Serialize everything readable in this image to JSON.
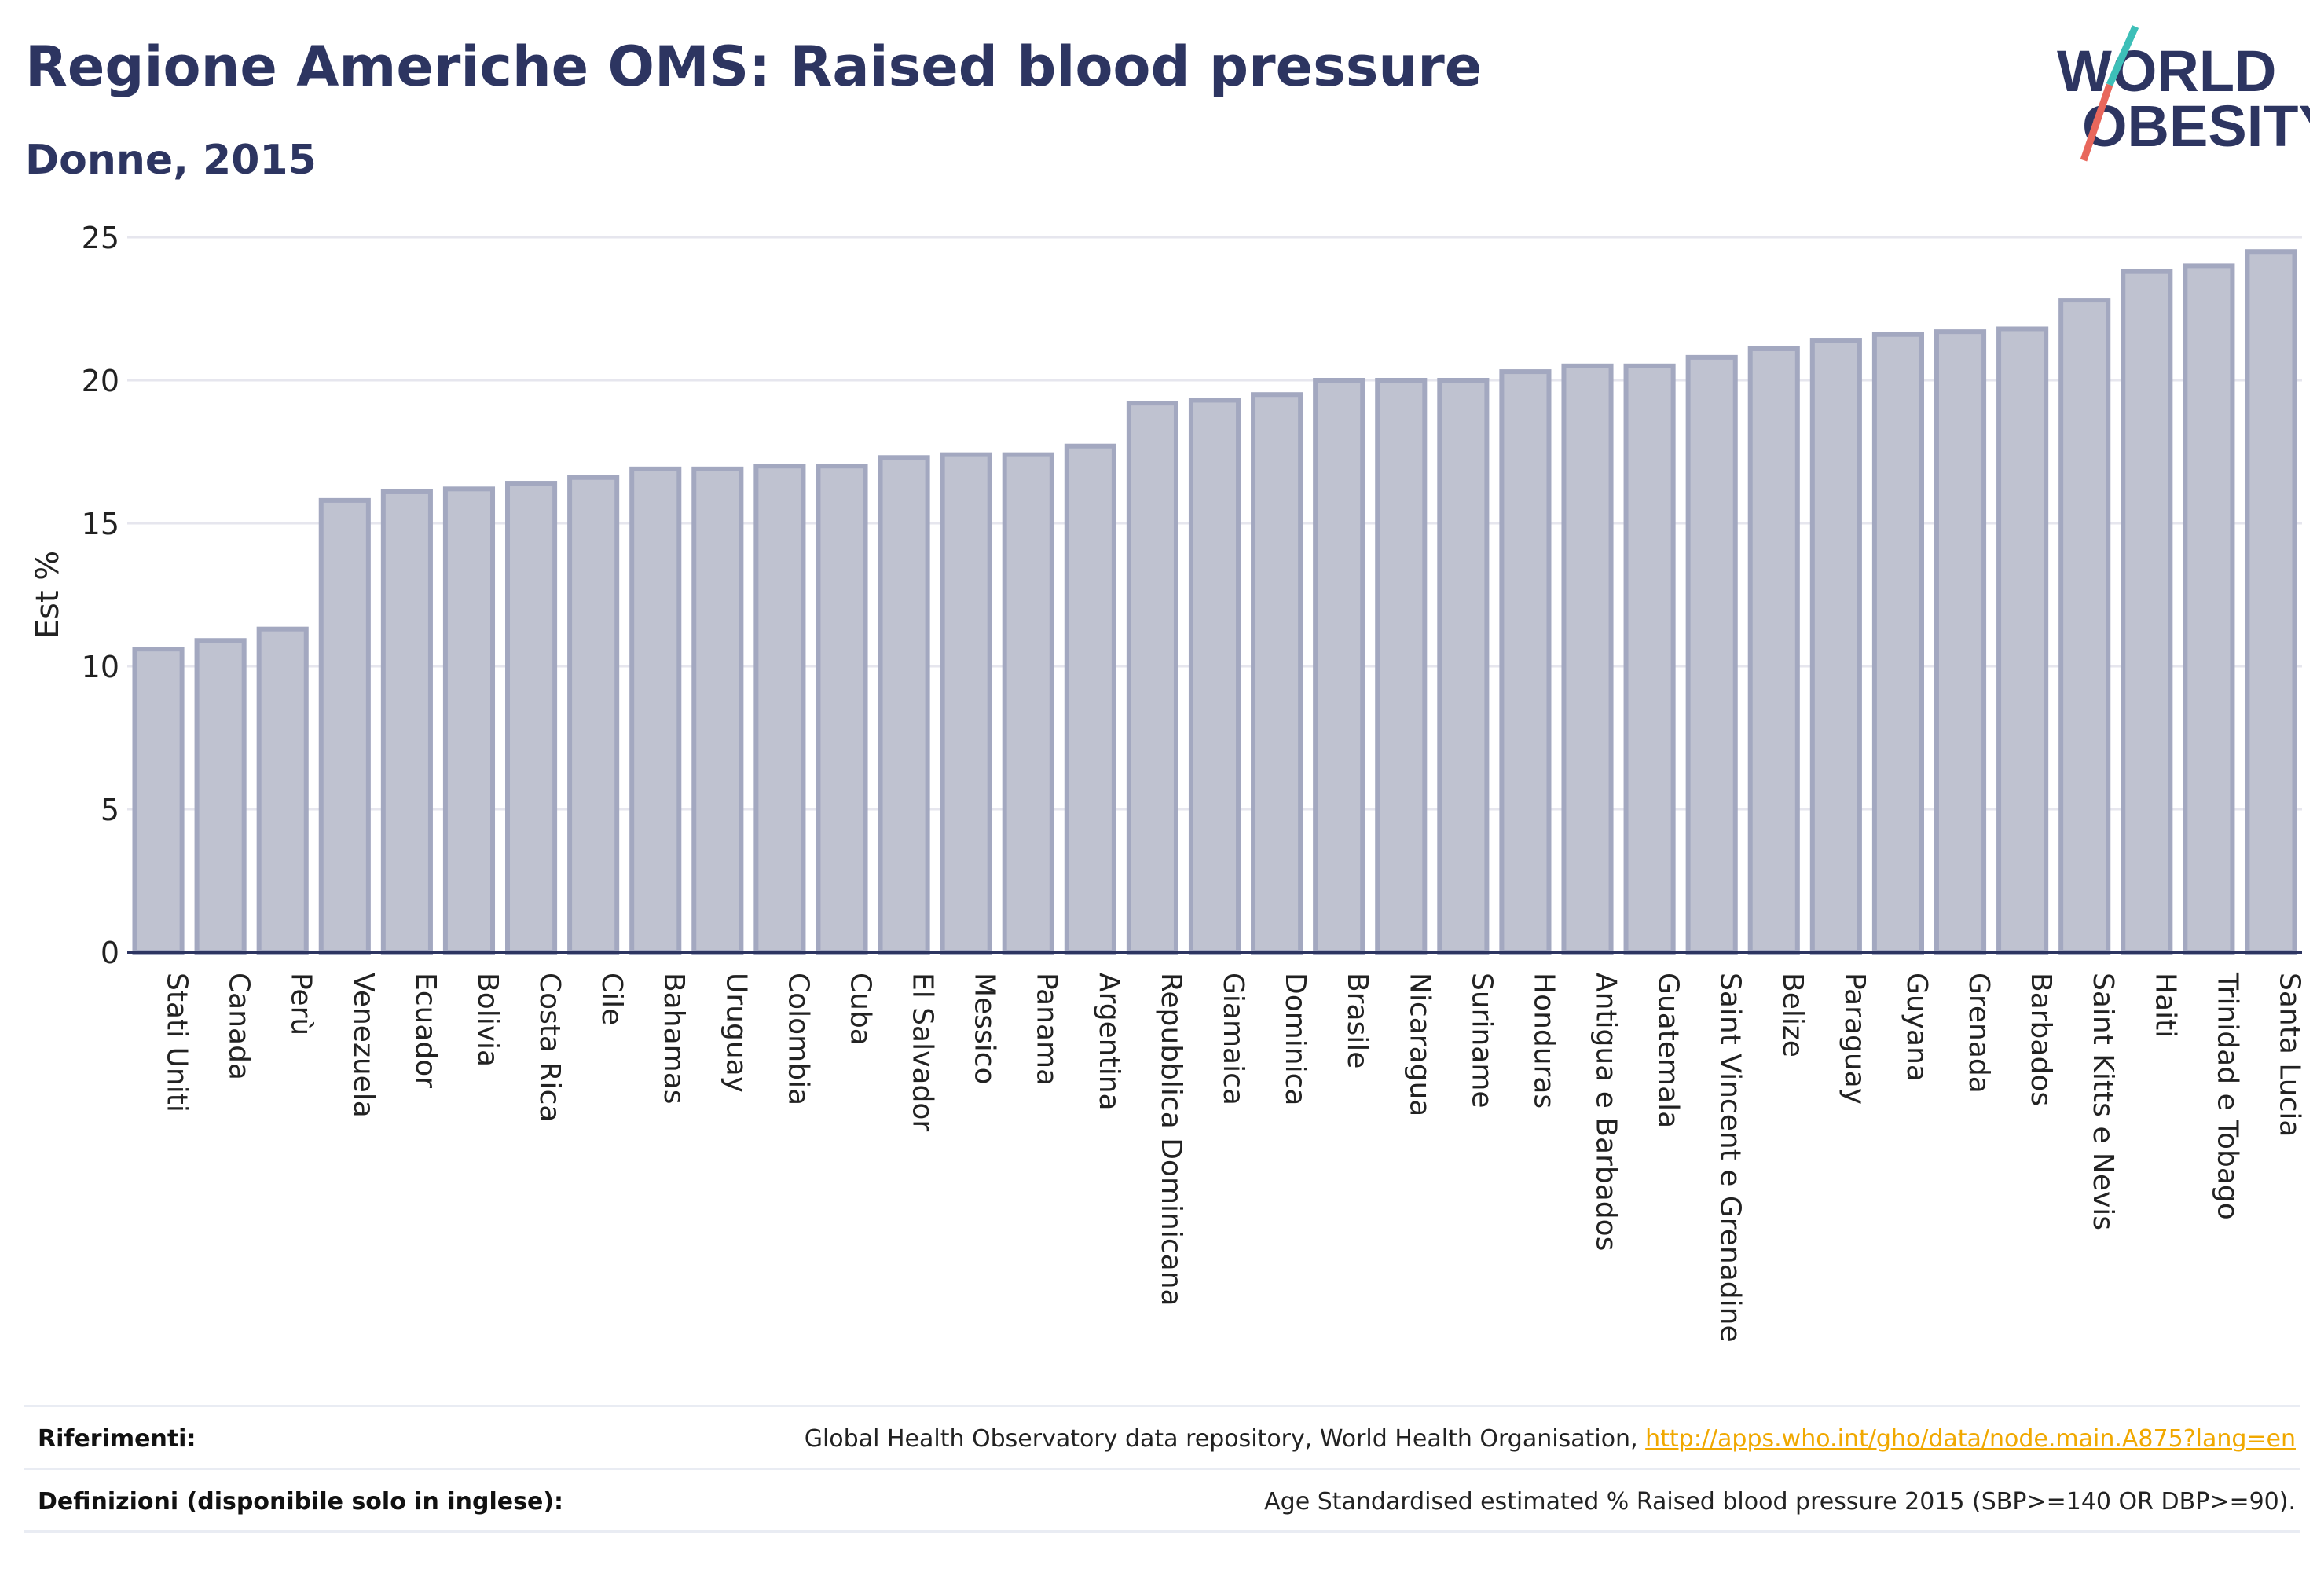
{
  "header": {
    "title": "Regione Americhe OMS: Raised blood pressure",
    "subtitle": "Donne, 2015"
  },
  "logo": {
    "line1": "WORLD",
    "line2": "OBESITY"
  },
  "colors": {
    "bar_fill": "#bfc2d0",
    "bar_stroke": "#a3a8c0",
    "axis": "#2d3561",
    "grid": "#e6e6ee",
    "accent_teal": "#3dbfb8",
    "accent_red": "#e8675c",
    "link": "#f0a800"
  },
  "chart_data": {
    "type": "bar",
    "ylabel": "Est %",
    "ylim": [
      0,
      25
    ],
    "yticks": [
      0,
      5,
      10,
      15,
      20,
      25
    ],
    "grid": true,
    "categories": [
      "Stati Uniti",
      "Canada",
      "Perù",
      "Venezuela",
      "Ecuador",
      "Bolivia",
      "Costa Rica",
      "Cile",
      "Bahamas",
      "Uruguay",
      "Colombia",
      "Cuba",
      "El Salvador",
      "Messico",
      "Panama",
      "Argentina",
      "Repubblica Dominicana",
      "Giamaica",
      "Dominica",
      "Brasile",
      "Nicaragua",
      "Suriname",
      "Honduras",
      "Antigua e Barbados",
      "Guatemala",
      "Saint Vincent e Grenadine",
      "Belize",
      "Paraguay",
      "Guyana",
      "Grenada",
      "Barbados",
      "Saint Kitts e Nevis",
      "Haiti",
      "Trinidad e Tobago",
      "Santa Lucia"
    ],
    "values": [
      10.6,
      10.9,
      11.3,
      15.8,
      16.1,
      16.2,
      16.4,
      16.6,
      16.9,
      16.9,
      17.0,
      17.0,
      17.3,
      17.4,
      17.4,
      17.7,
      19.2,
      19.3,
      19.5,
      20.0,
      20.0,
      20.0,
      20.3,
      20.5,
      20.5,
      20.8,
      21.1,
      21.4,
      21.6,
      21.7,
      21.8,
      22.8,
      23.8,
      24.0,
      24.5
    ]
  },
  "footer": {
    "references_label": "Riferimenti:",
    "references_text": "Global Health Observatory data repository, World Health Organisation, ",
    "references_link": "http://apps.who.int/gho/data/node.main.A875?lang=en",
    "definitions_label": "Definizioni (disponibile solo in inglese):",
    "definitions_text": "Age Standardised estimated % Raised blood pressure 2015 (SBP>=140 OR DBP>=90)."
  }
}
